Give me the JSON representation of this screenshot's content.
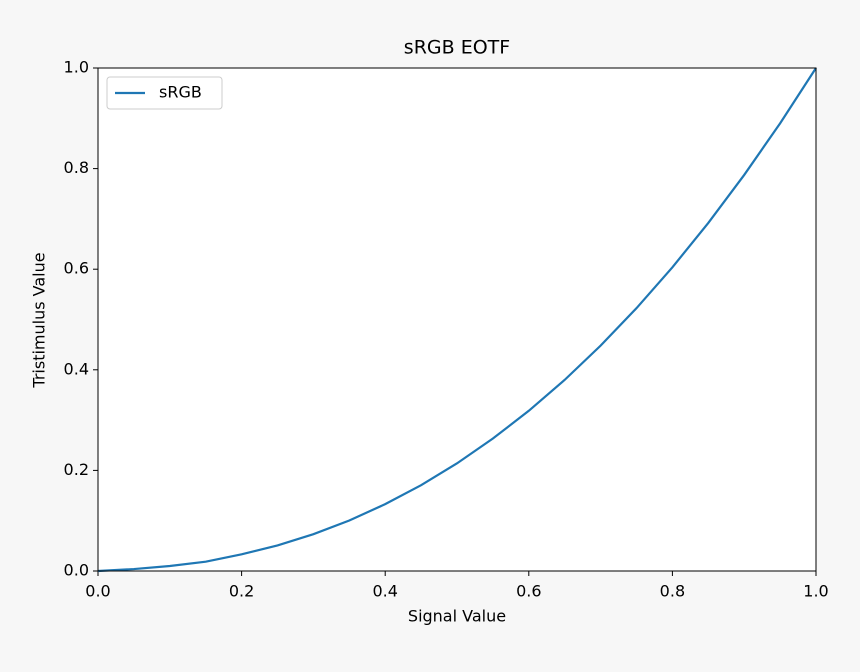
{
  "chart_data": {
    "type": "line",
    "title": "sRGB EOTF",
    "x_label": "Signal Value",
    "y_label": "Tristimulus Value",
    "x": [
      0,
      0.05,
      0.1,
      0.15,
      0.2,
      0.25,
      0.3,
      0.35,
      0.4,
      0.45,
      0.5,
      0.55,
      0.6,
      0.65,
      0.7,
      0.75,
      0.8,
      0.85,
      0.9,
      0.95,
      1
    ],
    "series": [
      {
        "name": "sRGB",
        "color": "#1f77b4",
        "values": [
          0,
          0.0039,
          0.01,
          0.0185,
          0.0331,
          0.0509,
          0.0732,
          0.1004,
          0.1329,
          0.1706,
          0.214,
          0.2634,
          0.3185,
          0.38,
          0.448,
          0.5225,
          0.6038,
          0.692,
          0.7874,
          0.89,
          1
        ]
      }
    ],
    "xlim": [
      0,
      1
    ],
    "ylim": [
      0,
      1
    ],
    "xticks": [
      {
        "value": 0,
        "label": "0.0"
      },
      {
        "value": 0.2,
        "label": "0.2"
      },
      {
        "value": 0.4,
        "label": "0.4"
      },
      {
        "value": 0.6,
        "label": "0.6"
      },
      {
        "value": 0.8,
        "label": "0.8"
      },
      {
        "value": 1,
        "label": "1.0"
      }
    ],
    "yticks": [
      {
        "value": 0,
        "label": "0.0"
      },
      {
        "value": 0.2,
        "label": "0.2"
      },
      {
        "value": 0.4,
        "label": "0.4"
      },
      {
        "value": 0.6,
        "label": "0.6"
      },
      {
        "value": 0.8,
        "label": "0.8"
      },
      {
        "value": 1,
        "label": "1.0"
      }
    ],
    "grid": false,
    "legend": "upper-left"
  }
}
